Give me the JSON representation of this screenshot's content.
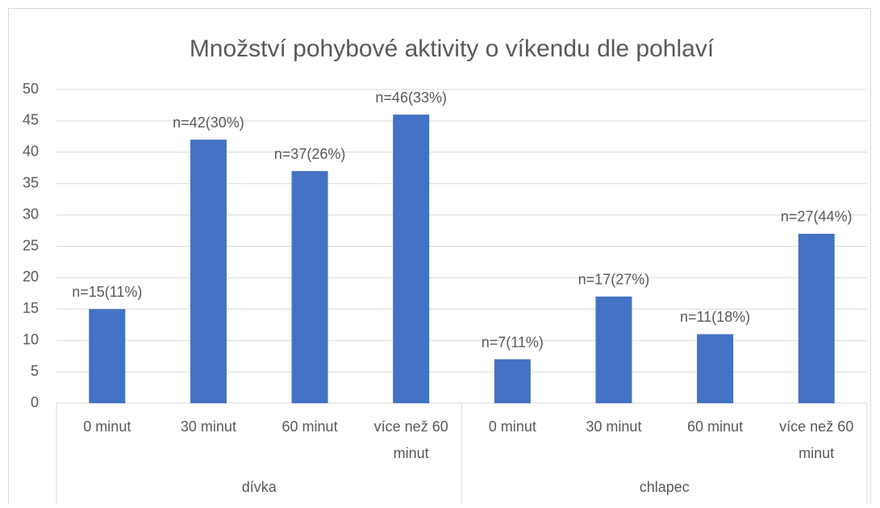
{
  "chart_data": {
    "type": "bar",
    "title": "Množství pohybové aktivity o víkendu dle pohlaví",
    "color": "#4472c4",
    "groups": [
      {
        "name": "dívka",
        "categories": [
          "0 minut",
          "30 minut",
          "60 minut",
          "více než 60 minut"
        ],
        "values": [
          15,
          42,
          37,
          46
        ],
        "value_labels": [
          "n=15(11%)",
          "n=42(30%)",
          "n=37(26%)",
          "n=46(33%)"
        ]
      },
      {
        "name": "chlapec",
        "categories": [
          "0 minut",
          "30 minut",
          "60 minut",
          "více než 60 minut"
        ],
        "values": [
          7,
          17,
          11,
          27
        ],
        "value_labels": [
          "n=7(11%)",
          "n=17(27%)",
          "n=11(18%)",
          "n=27(44%)"
        ]
      }
    ],
    "ylim": [
      0,
      50
    ],
    "yticks": [
      0,
      5,
      10,
      15,
      20,
      25,
      30,
      35,
      40,
      45,
      50
    ],
    "grid": true
  }
}
